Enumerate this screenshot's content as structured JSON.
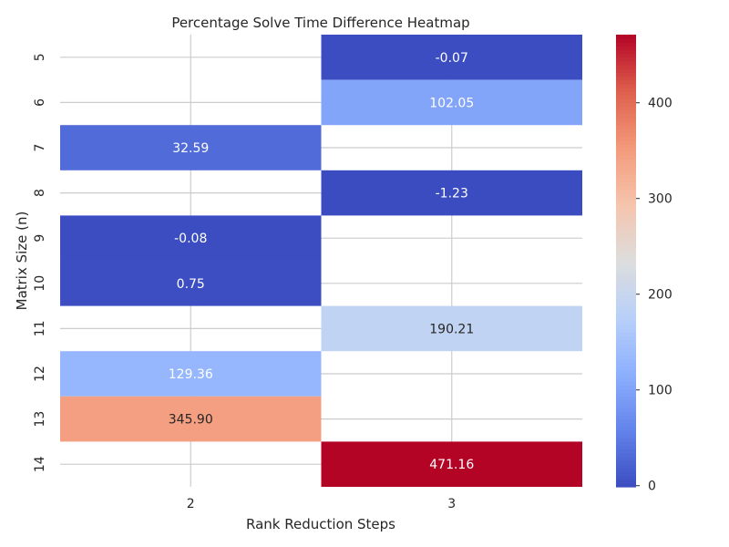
{
  "chart_data": {
    "type": "heatmap",
    "title": "Percentage Solve Time Difference Heatmap",
    "xlabel": "Rank Reduction Steps",
    "ylabel": "Matrix Size (n)",
    "x_categories": [
      "2",
      "3"
    ],
    "y_categories": [
      "5",
      "6",
      "7",
      "8",
      "9",
      "10",
      "11",
      "12",
      "13",
      "14"
    ],
    "cells": [
      {
        "row": "5",
        "col": "3",
        "value": -0.07,
        "label": "-0.07"
      },
      {
        "row": "6",
        "col": "3",
        "value": 102.05,
        "label": "102.05"
      },
      {
        "row": "7",
        "col": "2",
        "value": 32.59,
        "label": "32.59"
      },
      {
        "row": "8",
        "col": "3",
        "value": -1.23,
        "label": "-1.23"
      },
      {
        "row": "9",
        "col": "2",
        "value": -0.08,
        "label": "-0.08"
      },
      {
        "row": "10",
        "col": "2",
        "value": 0.75,
        "label": "0.75"
      },
      {
        "row": "11",
        "col": "3",
        "value": 190.21,
        "label": "190.21"
      },
      {
        "row": "12",
        "col": "2",
        "value": 129.36,
        "label": "129.36"
      },
      {
        "row": "13",
        "col": "2",
        "value": 345.9,
        "label": "345.90"
      },
      {
        "row": "14",
        "col": "3",
        "value": 471.16,
        "label": "471.16"
      }
    ],
    "colorbar": {
      "colormap": "coolwarm",
      "range": [
        -1.23,
        471.16
      ],
      "ticks": [
        0,
        100,
        200,
        300,
        400
      ]
    },
    "grid": true
  }
}
